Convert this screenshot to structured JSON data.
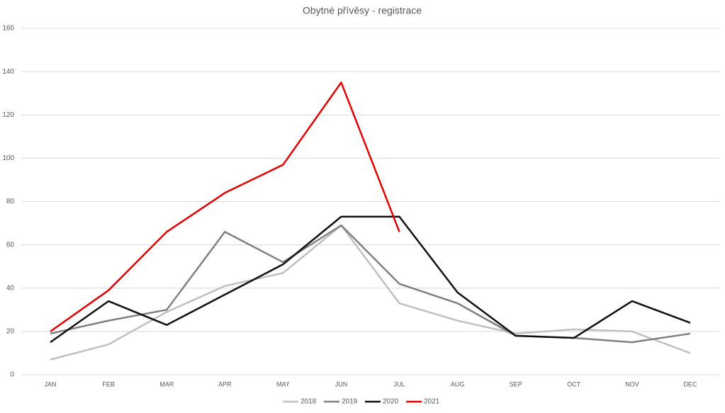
{
  "chart_data": {
    "type": "line",
    "title": "Obytné přívěsy - registrace",
    "categories": [
      "JAN",
      "FEB",
      "MAR",
      "APR",
      "MAY",
      "JUN",
      "JUL",
      "AUG",
      "SEP",
      "OCT",
      "NOV",
      "DEC"
    ],
    "series": [
      {
        "name": "2018",
        "color": "#c0c0c0",
        "values": [
          7,
          14,
          29,
          41,
          47,
          69,
          33,
          25,
          19,
          21,
          20,
          10
        ]
      },
      {
        "name": "2019",
        "color": "#808080",
        "values": [
          19,
          25,
          30,
          66,
          52,
          69,
          42,
          33,
          18,
          17,
          15,
          19
        ]
      },
      {
        "name": "2020",
        "color": "#111111",
        "values": [
          15,
          34,
          23,
          37,
          51,
          73,
          73,
          38,
          18,
          17,
          34,
          24
        ]
      },
      {
        "name": "2021",
        "color": "#e60000",
        "values": [
          20,
          39,
          66,
          84,
          97,
          135,
          66,
          null,
          null,
          null,
          null,
          null
        ]
      }
    ],
    "ylim": [
      0,
      160
    ],
    "yticks": [
      0,
      20,
      40,
      60,
      80,
      100,
      120,
      140,
      160
    ],
    "grid": true,
    "legend": "bottom"
  }
}
